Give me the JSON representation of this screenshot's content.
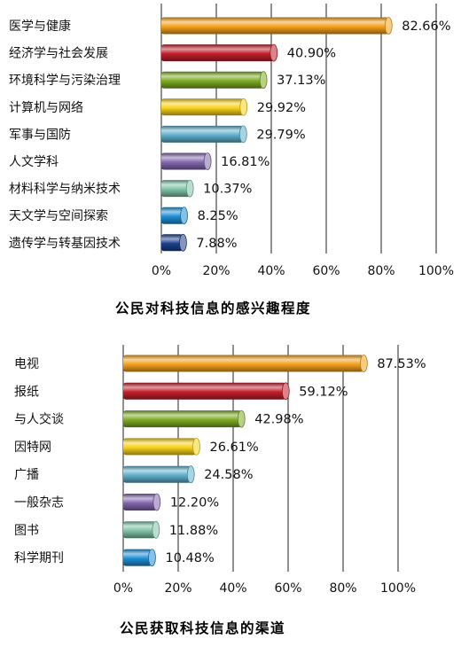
{
  "chart_data": [
    {
      "type": "bar",
      "orientation": "horizontal",
      "title": "公民对科技信息的感兴趣程度",
      "categories": [
        "医学与健康",
        "经济学与社会发展",
        "环境科学与污染治理",
        "计算机与网络",
        "军事与国防",
        "人文学科",
        "材料科学与纳米技术",
        "天文学与空间探索",
        "遗传学与转基因技术"
      ],
      "values": [
        82.66,
        40.9,
        37.13,
        29.92,
        29.79,
        16.81,
        10.37,
        8.25,
        7.88
      ],
      "value_labels": [
        "82.66%",
        "40.90%",
        "37.13%",
        "29.92%",
        "29.79%",
        "16.81%",
        "10.37%",
        "8.25%",
        "7.88%"
      ],
      "xlim": [
        0,
        100
      ],
      "ticks": [
        "0%",
        "20%",
        "40%",
        "60%",
        "80%",
        "100%"
      ],
      "grid": true,
      "legend": "none",
      "bar_colors": [
        "#f5a21b",
        "#c21f2c",
        "#7fad23",
        "#f7d21c",
        "#5fb0cc",
        "#8368ae",
        "#7fc3a8",
        "#1f8fd6",
        "#1d3f8c"
      ]
    },
    {
      "type": "bar",
      "orientation": "horizontal",
      "title": "公民获取科技信息的渠道",
      "categories": [
        "电视",
        "报纸",
        "与人交谈",
        "因特网",
        "广播",
        "一般杂志",
        "图书",
        "科学期刊"
      ],
      "values": [
        87.53,
        59.12,
        42.98,
        26.61,
        24.58,
        12.2,
        11.88,
        10.48
      ],
      "value_labels": [
        "87.53%",
        "59.12%",
        "42.98%",
        "26.61%",
        "24.58%",
        "12.20%",
        "11.88%",
        "10.48%"
      ],
      "xlim": [
        0,
        100
      ],
      "ticks": [
        "0%",
        "20%",
        "40%",
        "60%",
        "80%",
        "100%"
      ],
      "grid": true,
      "legend": "none",
      "bar_colors": [
        "#f5a21b",
        "#c21f2c",
        "#7fad23",
        "#f7d21c",
        "#5fb0cc",
        "#8368ae",
        "#7fc3a8",
        "#1f8fd6"
      ]
    }
  ]
}
